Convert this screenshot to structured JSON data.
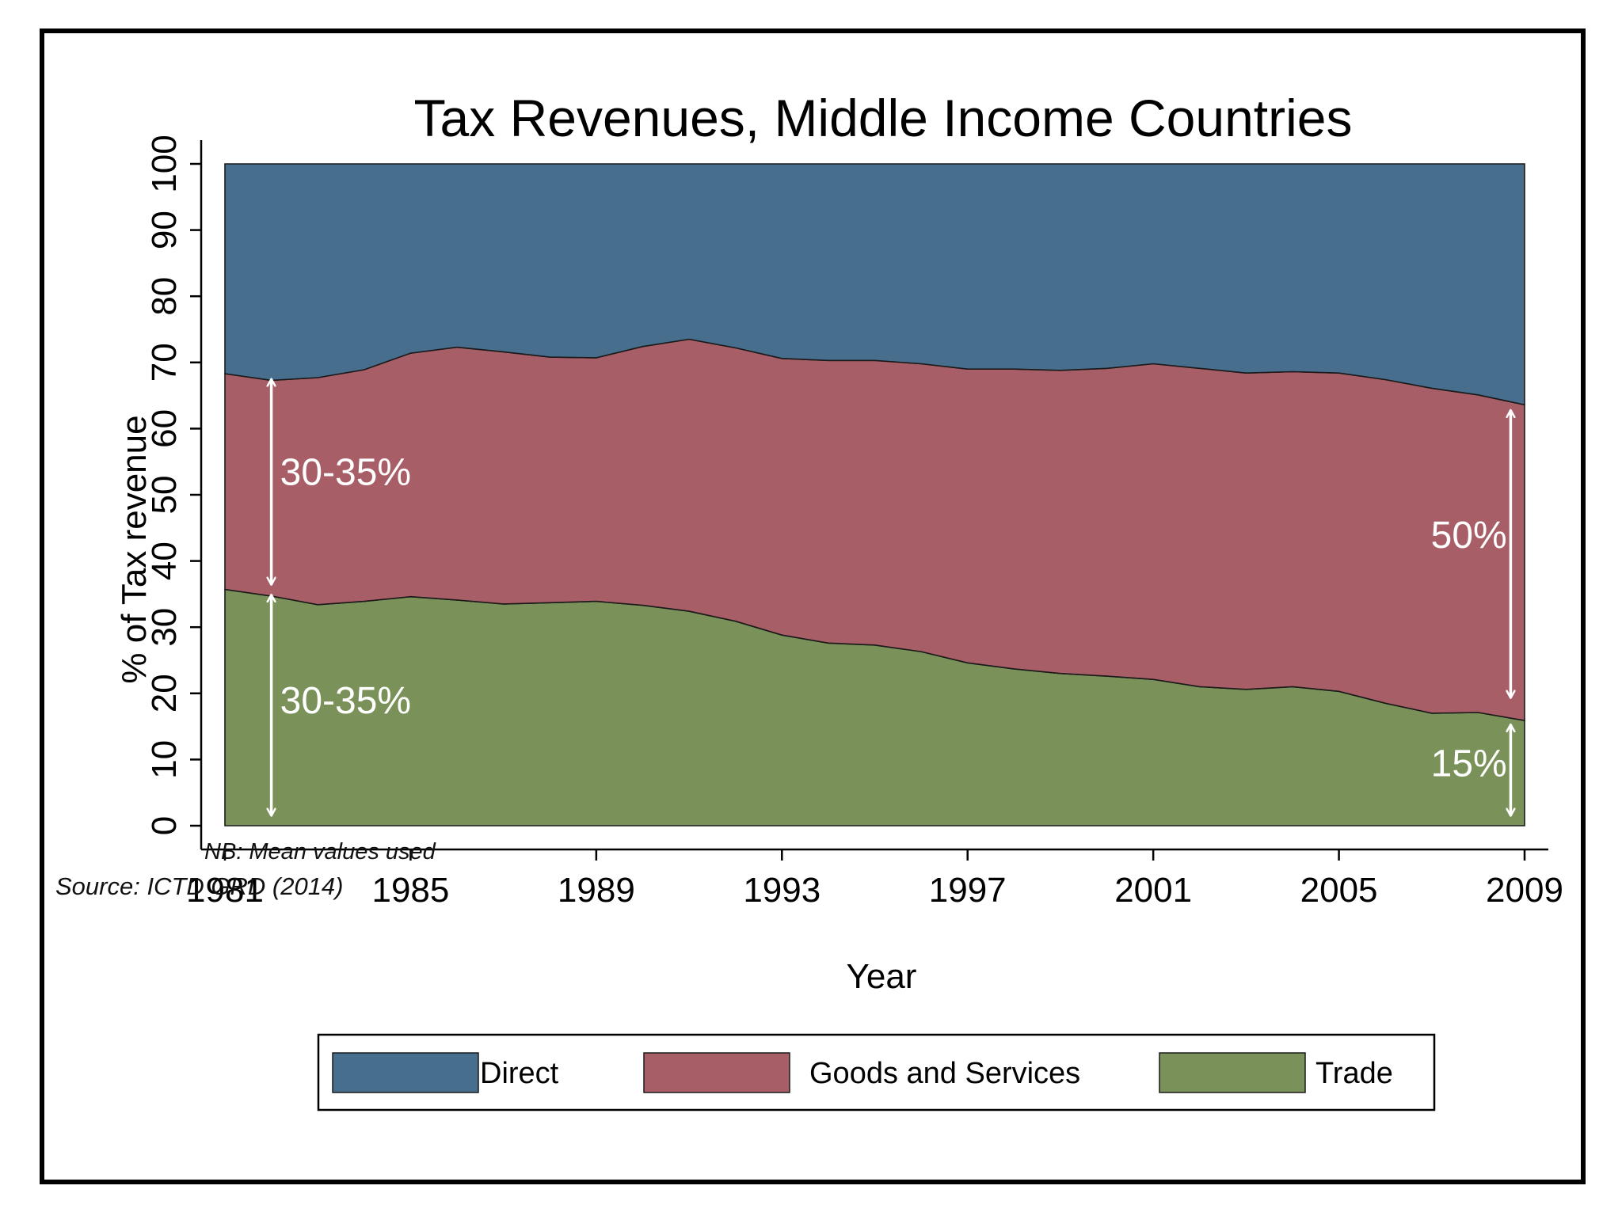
{
  "chart_data": {
    "type": "area",
    "stacked": true,
    "title": "Tax Revenues, Middle Income Countries",
    "xlabel": "Year",
    "ylabel": "% of Tax revenue",
    "xlim": [
      1981,
      2009
    ],
    "ylim": [
      0,
      100
    ],
    "x_ticks": [
      "1981",
      "1985",
      "1989",
      "1993",
      "1997",
      "2001",
      "2005",
      "2009"
    ],
    "y_ticks": [
      "0",
      "10",
      "20",
      "30",
      "40",
      "50",
      "60",
      "70",
      "80",
      "90",
      "100"
    ],
    "x": [
      1981,
      1982,
      1983,
      1984,
      1985,
      1986,
      1987,
      1988,
      1989,
      1990,
      1991,
      1992,
      1993,
      1994,
      1995,
      1996,
      1997,
      1998,
      1999,
      2000,
      2001,
      2002,
      2003,
      2004,
      2005,
      2006,
      2007,
      2008,
      2009
    ],
    "series": [
      {
        "name": "Trade",
        "color": "#7a9259",
        "values": [
          35.7,
          34.7,
          33.4,
          33.9,
          34.6,
          34.1,
          33.5,
          33.7,
          33.9,
          33.3,
          32.4,
          30.9,
          28.8,
          27.6,
          27.3,
          26.3,
          24.6,
          23.7,
          23.0,
          22.6,
          22.1,
          21.0,
          20.6,
          21.0,
          20.3,
          18.5,
          17.0,
          17.1,
          15.9
        ]
      },
      {
        "name": "Goods and Services",
        "color": "#a85e66",
        "values": [
          32.6,
          32.6,
          34.3,
          35.0,
          36.8,
          38.2,
          38.1,
          37.1,
          36.8,
          39.1,
          41.1,
          41.3,
          41.8,
          42.7,
          43.0,
          43.5,
          44.4,
          45.3,
          45.8,
          46.5,
          47.7,
          48.1,
          47.8,
          47.6,
          48.1,
          48.9,
          49.1,
          48.0,
          47.7
        ]
      },
      {
        "name": "Direct",
        "color": "#486e8d",
        "values": [
          31.7,
          32.7,
          32.3,
          31.1,
          28.6,
          27.7,
          28.4,
          29.2,
          29.3,
          27.6,
          26.5,
          27.8,
          29.4,
          29.7,
          29.7,
          30.2,
          31.0,
          31.0,
          31.2,
          30.9,
          30.2,
          30.9,
          31.6,
          31.4,
          31.6,
          32.6,
          33.9,
          34.9,
          36.4
        ]
      }
    ],
    "annotations": [
      {
        "text": "30-35%",
        "x": 1983.6,
        "y": 51.5,
        "arrow_from": [
          1982.0,
          67.5
        ],
        "arrow_to": [
          1982.0,
          36.4
        ]
      },
      {
        "text": "30-35%",
        "x": 1983.6,
        "y": 17.0,
        "arrow_from": [
          1982.0,
          34.9
        ],
        "arrow_to": [
          1982.0,
          1.5
        ]
      },
      {
        "text": "50%",
        "x": 2007.8,
        "y": 42.0,
        "arrow_from": [
          2008.7,
          62.8
        ],
        "arrow_to": [
          2008.7,
          19.3
        ]
      },
      {
        "text": "15%",
        "x": 2007.8,
        "y": 7.5,
        "arrow_from": [
          2008.7,
          15.3
        ],
        "arrow_to": [
          2008.7,
          1.5
        ]
      }
    ],
    "legend_position": "bottom",
    "grid": false,
    "annotation_color": "#ffffff"
  },
  "notes": {
    "nb": "NB: Mean values used",
    "source": "Source: ICTD GRD (2014)"
  }
}
